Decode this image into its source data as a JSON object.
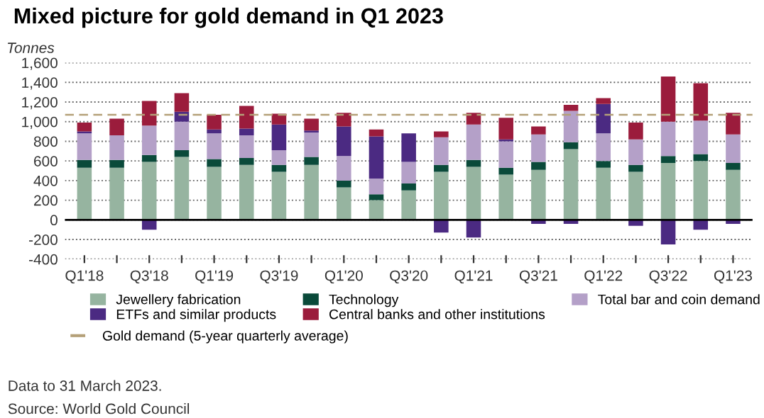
{
  "chart_data": {
    "type": "bar",
    "stacked": true,
    "title": "Mixed picture for gold demand in Q1 2023",
    "ylabel": "Tonnes",
    "categories": [
      "Q1'18",
      null,
      "Q3'18",
      null,
      "Q1'19",
      null,
      "Q3'19",
      null,
      "Q1'20",
      null,
      "Q3'20",
      null,
      "Q1'21",
      null,
      "Q3'21",
      null,
      "Q1'22",
      null,
      "Q3'22",
      null,
      "Q1'23"
    ],
    "series": [
      {
        "name": "Jewellery fabrication",
        "color": "#96b4a0",
        "values": [
          530,
          530,
          590,
          640,
          540,
          560,
          490,
          560,
          330,
          200,
          300,
          490,
          540,
          460,
          510,
          720,
          530,
          490,
          580,
          600,
          510
        ]
      },
      {
        "name": "Technology",
        "color": "#0a4a3a",
        "values": [
          80,
          80,
          70,
          70,
          80,
          70,
          70,
          80,
          70,
          60,
          70,
          70,
          70,
          70,
          80,
          70,
          70,
          70,
          70,
          70,
          70
        ]
      },
      {
        "name": "Total bar and coin demand",
        "color": "#b4a0c8",
        "values": [
          270,
          250,
          300,
          290,
          260,
          230,
          150,
          250,
          250,
          160,
          220,
          280,
          360,
          270,
          280,
          320,
          280,
          260,
          350,
          340,
          290
        ]
      },
      {
        "name": "ETFs and similar products",
        "color": "#4b2a82",
        "values": [
          20,
          0,
          -100,
          100,
          40,
          70,
          260,
          20,
          300,
          430,
          290,
          -130,
          -180,
          20,
          -40,
          -40,
          300,
          -60,
          -250,
          -100,
          -40
        ]
      },
      {
        "name": "Central banks and other institutions",
        "color": "#9b1c3c",
        "values": [
          90,
          170,
          250,
          190,
          150,
          230,
          110,
          120,
          140,
          70,
          0,
          60,
          120,
          220,
          80,
          60,
          60,
          170,
          460,
          380,
          220
        ]
      }
    ],
    "ref_lines": [
      {
        "axis": "y",
        "value": 1070,
        "label": "Gold demand (5-year quarterly average)",
        "color": "#b4a078",
        "line_style": "dashed"
      }
    ],
    "ylim": [
      -400,
      1600
    ],
    "yticks": [
      {
        "value": -400,
        "label": "-400"
      },
      {
        "value": -200,
        "label": "-200"
      },
      0,
      200,
      400,
      600,
      800,
      {
        "value": 1000,
        "label": "1,000"
      },
      {
        "value": 1200,
        "label": "1,200"
      },
      {
        "value": 1400,
        "label": "1,400"
      },
      {
        "value": 1600,
        "label": "1,600"
      }
    ],
    "grid": "y",
    "legend": "bottom",
    "annotations": [
      "Data to 31 March 2023.",
      "Source: World Gold Council"
    ]
  }
}
